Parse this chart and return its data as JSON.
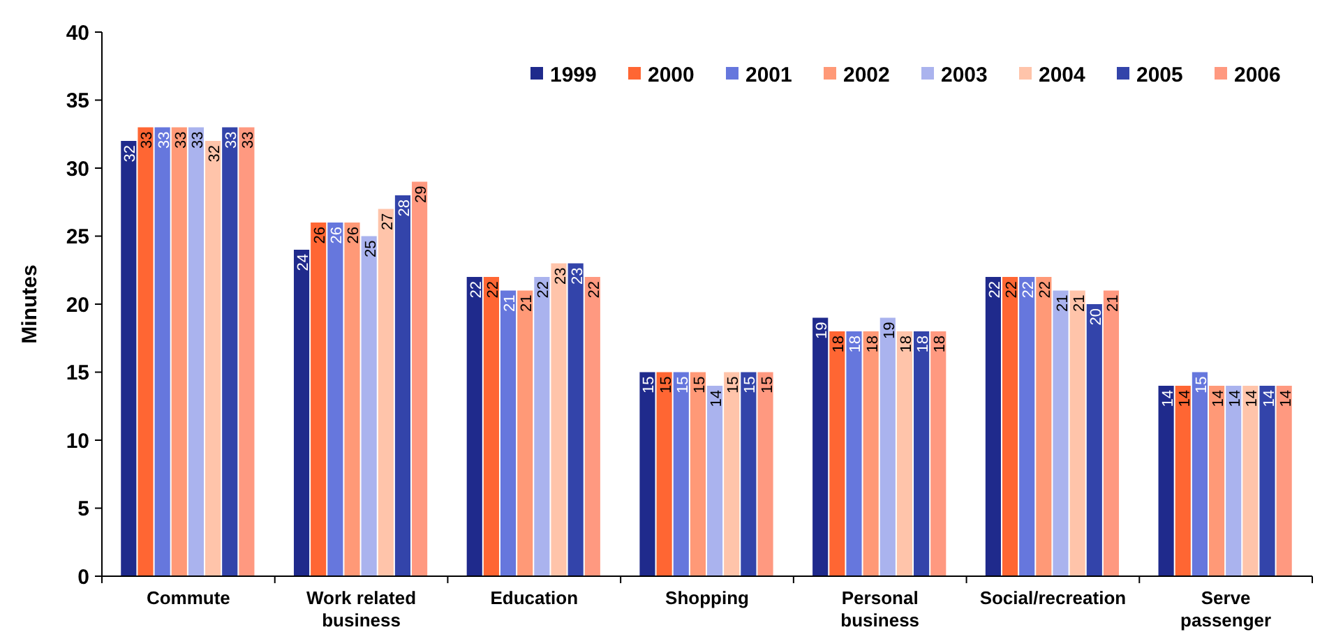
{
  "chart_data": {
    "type": "bar",
    "ylabel": "Minutes",
    "categories": [
      "Commute",
      "Work related business",
      "Education",
      "Shopping",
      "Personal business",
      "Social/recreation",
      "Serve passenger"
    ],
    "ylim": [
      0,
      40
    ],
    "yticks": [
      0,
      5,
      10,
      15,
      20,
      25,
      30,
      35,
      40
    ],
    "legend": "top right",
    "data_labels": true,
    "series": [
      {
        "name": "1999",
        "color": "#1f2a8c",
        "values": [
          32,
          24,
          22,
          15,
          19,
          22,
          14
        ]
      },
      {
        "name": "2000",
        "color": "#ff6633",
        "values": [
          33,
          26,
          22,
          15,
          18,
          22,
          14
        ]
      },
      {
        "name": "2001",
        "color": "#6677dd",
        "values": [
          33,
          26,
          21,
          15,
          18,
          22,
          15
        ]
      },
      {
        "name": "2002",
        "color": "#ff9977",
        "values": [
          33,
          26,
          21,
          15,
          18,
          22,
          14
        ]
      },
      {
        "name": "2003",
        "color": "#aab3ee",
        "values": [
          33,
          25,
          22,
          14,
          19,
          21,
          14
        ]
      },
      {
        "name": "2004",
        "color": "#ffc4aa",
        "values": [
          32,
          27,
          23,
          15,
          18,
          21,
          14
        ]
      },
      {
        "name": "2005",
        "color": "#3344aa",
        "values": [
          33,
          28,
          23,
          15,
          18,
          20,
          14
        ]
      },
      {
        "name": "2006",
        "color": "#ff9980",
        "values": [
          33,
          29,
          22,
          15,
          18,
          21,
          14
        ]
      }
    ]
  }
}
